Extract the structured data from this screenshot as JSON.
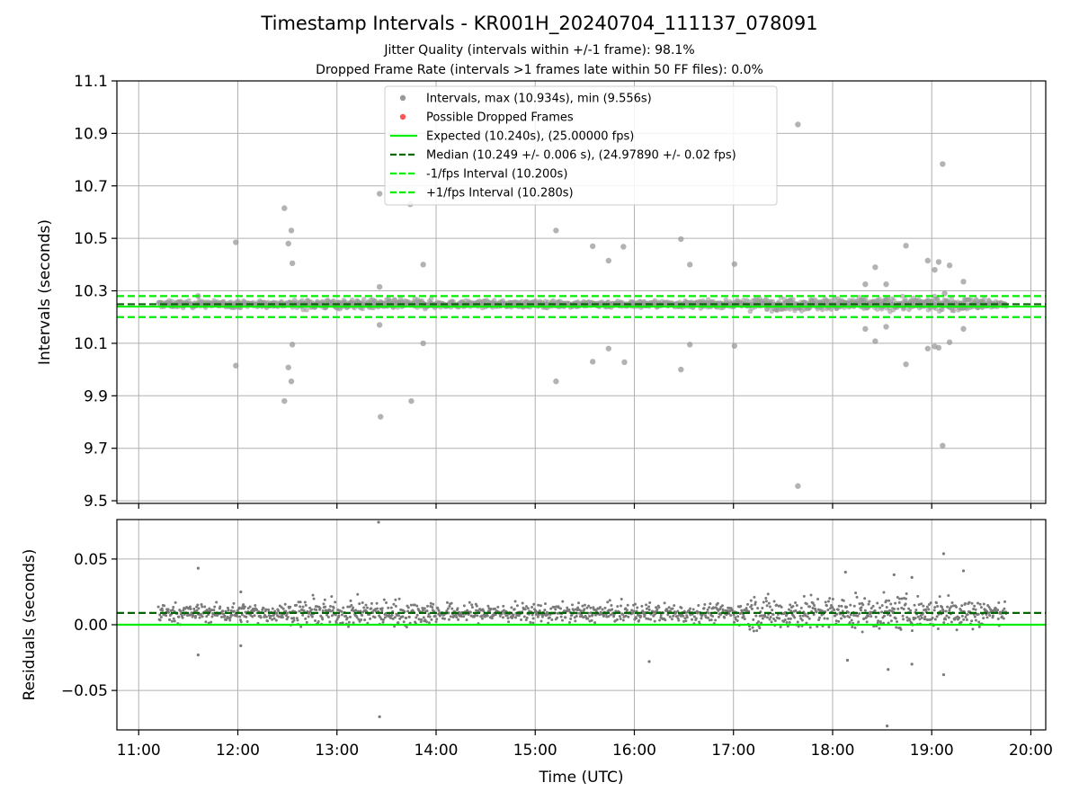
{
  "chart_data": {
    "title": "Timestamp Intervals - KR001H_20240704_111137_078091",
    "subtitle_lines": [
      "Jitter Quality (intervals within +/-1 frame): 98.1%",
      "Dropped Frame Rate (intervals >1 frames late within 50 FF files): 0.0%"
    ],
    "xlabel": "Time (UTC)",
    "x_ticks": [
      "11:00",
      "12:00",
      "13:00",
      "14:00",
      "15:00",
      "16:00",
      "17:00",
      "18:00",
      "19:00",
      "20:00"
    ],
    "x_range_hours": [
      10.78,
      20.15
    ],
    "grid": true,
    "legend": {
      "placement": "upper-center",
      "entries": [
        {
          "label": "Intervals, max (10.934s), min (9.556s)",
          "marker": "point",
          "color": "#999999"
        },
        {
          "label": "Possible Dropped Frames",
          "marker": "point",
          "color": "#ff5555"
        },
        {
          "label": "Expected (10.240s), (25.00000 fps)",
          "marker": "solid",
          "color": "#00ee00"
        },
        {
          "label": "Median (10.249 +/- 0.006 s), (24.97890 +/- 0.02 fps)",
          "marker": "dashed",
          "color": "#006400"
        },
        {
          "label": "-1/fps Interval (10.200s)",
          "marker": "dashed",
          "color": "#00ee00"
        },
        {
          "label": "+1/fps Interval (10.280s)",
          "marker": "dashed",
          "color": "#00ee00"
        }
      ]
    },
    "panels": [
      {
        "type": "scatter",
        "ylabel": "Intervals (seconds)",
        "ylim": [
          9.49,
          11.1
        ],
        "y_ticks": [
          "9.5",
          "9.7",
          "9.9",
          "10.1",
          "10.3",
          "10.5",
          "10.7",
          "10.9",
          "11.1"
        ],
        "reference_lines": [
          {
            "name": "expected",
            "y": 10.24,
            "style": "solid",
            "color": "#00ee00"
          },
          {
            "name": "median",
            "y": 10.249,
            "style": "dashed",
            "color": "#006400"
          },
          {
            "name": "minus_one_frame",
            "y": 10.2,
            "style": "dashed",
            "color": "#00ee00"
          },
          {
            "name": "plus_one_frame",
            "y": 10.28,
            "style": "dashed",
            "color": "#00ee00"
          }
        ],
        "dense_band": {
          "x_start": 11.2,
          "x_end": 19.75,
          "y_center": 10.249,
          "spread": 0.012
        },
        "outliers": [
          [
            11.6,
            10.28
          ],
          [
            11.98,
            10.485
          ],
          [
            11.98,
            10.015
          ],
          [
            12.47,
            10.615
          ],
          [
            12.47,
            9.88
          ],
          [
            12.51,
            10.48
          ],
          [
            12.51,
            10.008
          ],
          [
            12.54,
            10.53
          ],
          [
            12.55,
            10.405
          ],
          [
            12.55,
            10.095
          ],
          [
            12.54,
            9.955
          ],
          [
            13.43,
            10.67
          ],
          [
            13.43,
            10.315
          ],
          [
            13.43,
            10.17
          ],
          [
            13.44,
            9.82
          ],
          [
            13.74,
            10.63
          ],
          [
            13.75,
            9.88
          ],
          [
            13.87,
            10.4
          ],
          [
            13.87,
            10.1
          ],
          [
            15.21,
            10.53
          ],
          [
            15.21,
            9.955
          ],
          [
            15.58,
            10.47
          ],
          [
            15.58,
            10.03
          ],
          [
            15.74,
            10.415
          ],
          [
            15.74,
            10.08
          ],
          [
            15.89,
            10.468
          ],
          [
            15.9,
            10.028
          ],
          [
            16.47,
            10.497
          ],
          [
            16.47,
            10.0
          ],
          [
            16.56,
            10.4
          ],
          [
            16.56,
            10.095
          ],
          [
            17.01,
            10.402
          ],
          [
            17.01,
            10.09
          ],
          [
            17.65,
            10.934
          ],
          [
            17.65,
            9.556
          ],
          [
            18.33,
            10.325
          ],
          [
            18.33,
            10.155
          ],
          [
            18.43,
            10.39
          ],
          [
            18.43,
            10.108
          ],
          [
            18.54,
            10.325
          ],
          [
            18.54,
            10.163
          ],
          [
            18.74,
            10.472
          ],
          [
            18.74,
            10.02
          ],
          [
            18.96,
            10.415
          ],
          [
            18.96,
            10.08
          ],
          [
            19.03,
            10.38
          ],
          [
            19.03,
            10.088
          ],
          [
            19.07,
            10.41
          ],
          [
            19.07,
            10.083
          ],
          [
            19.11,
            10.783
          ],
          [
            19.11,
            9.71
          ],
          [
            19.13,
            10.29
          ],
          [
            19.18,
            10.397
          ],
          [
            19.18,
            10.104
          ],
          [
            19.32,
            10.335
          ],
          [
            19.32,
            10.155
          ]
        ]
      },
      {
        "type": "scatter",
        "ylabel": "Residuals (seconds)",
        "ylim": [
          -0.08,
          0.08
        ],
        "y_ticks": [
          "−0.05",
          "0.00",
          "0.05"
        ],
        "reference_lines": [
          {
            "name": "zero",
            "y": 0.0,
            "style": "solid",
            "color": "#00ee00"
          },
          {
            "name": "median_offset",
            "y": 0.009,
            "style": "dashed",
            "color": "#006400"
          }
        ],
        "dense_band": {
          "x_start": 11.2,
          "x_end": 19.75,
          "y_center": 0.009,
          "spread": 0.007
        },
        "outliers": [
          [
            11.6,
            0.043
          ],
          [
            11.6,
            -0.023
          ],
          [
            12.03,
            0.025
          ],
          [
            12.03,
            -0.016
          ],
          [
            13.42,
            0.078
          ],
          [
            13.43,
            -0.07
          ],
          [
            16.15,
            -0.028
          ],
          [
            18.13,
            0.04
          ],
          [
            18.15,
            -0.027
          ],
          [
            18.55,
            -0.077
          ],
          [
            18.56,
            -0.034
          ],
          [
            18.62,
            0.038
          ],
          [
            18.8,
            0.036
          ],
          [
            18.8,
            -0.03
          ],
          [
            19.12,
            0.054
          ],
          [
            19.12,
            -0.038
          ],
          [
            19.32,
            0.041
          ]
        ]
      }
    ]
  }
}
